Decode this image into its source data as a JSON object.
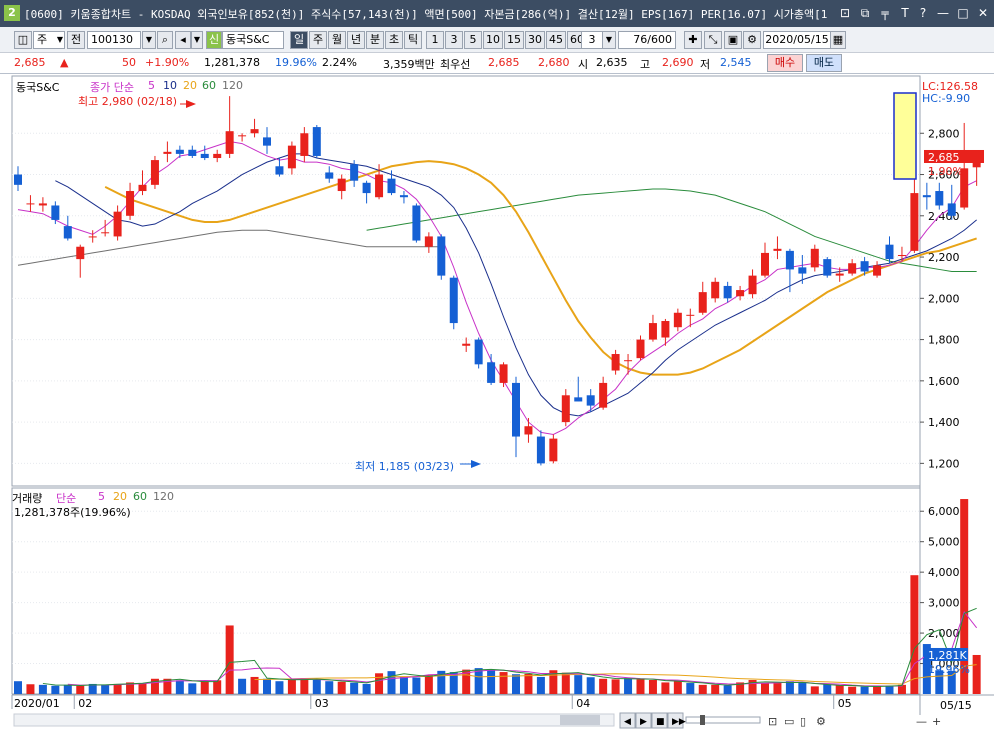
{
  "window": {
    "badge": "2",
    "title": "[0600] 키움종합차트 - KOSDAQ 외국인보유[852(천)] 주식수[57,143(천)] 액면[500] 자본금[286(억)] 결산[12월] EPS[167] PER[16.07] 시가총액[1",
    "controls": [
      "⊡",
      "⧉",
      "╤",
      "T",
      "?",
      "—",
      "□",
      "✕"
    ]
  },
  "toolbar": {
    "type_label": "주",
    "prev_label": "전",
    "code": "100130",
    "shin_label": "신",
    "stock_name": "동국S&C",
    "periods": [
      "일",
      "주",
      "월",
      "년",
      "분",
      "초",
      "틱"
    ],
    "intervals": [
      "1",
      "3",
      "5",
      "10",
      "15",
      "30",
      "45",
      "60"
    ],
    "interval_value": "3",
    "count": "76/600",
    "date": "2020/05/15"
  },
  "quote": {
    "price": "2,685",
    "arrow": "▲",
    "change": "50",
    "change_pct": "+1.90%",
    "volume": "1,281,378",
    "vol_pct": "19.96%",
    "turnover": "2.24%",
    "amount": "3,359백만",
    "best_label": "최우선",
    "ask": "2,685",
    "bid": "2,680",
    "open_label": "시",
    "open": "2,635",
    "high_label": "고",
    "high": "2,690",
    "low_label": "저",
    "low": "2,545",
    "buy_label": "매수",
    "sell_label": "매도"
  },
  "price_panel": {
    "stock_label": "동국S&C",
    "ma_label": "종가 단순",
    "ma_periods": [
      "5",
      "10",
      "20",
      "60",
      "120"
    ],
    "high_annotation": "최고 2,980 (02/18)",
    "low_annotation": "최저 1,185 (03/23)",
    "lc": "LC:126.58",
    "hc": "HC:-9.90",
    "last_price": "2,685",
    "last_pct": "1.90%",
    "ticks": [
      "2,800",
      "2,600",
      "2,400",
      "2,200",
      "2,000",
      "1,800",
      "1,600",
      "1,400",
      "1,200"
    ]
  },
  "volume_panel": {
    "label": "거래량",
    "ma_label": "단순",
    "ma_periods": [
      "5",
      "20",
      "60",
      "120"
    ],
    "current": "1,281,378주(19.96%)",
    "last_value": "1,281K",
    "last_pct": "19.96%",
    "ticks": [
      "6,000K",
      "5,000K",
      "4,000K",
      "3,000K",
      "2,000K",
      "1,000K"
    ]
  },
  "xaxis": {
    "labels": [
      "2020/01",
      "02",
      "03",
      "04",
      "05"
    ],
    "right_label": "05/15"
  },
  "colors": {
    "up": "#e8221c",
    "down": "#1560d4",
    "ma5": "#c832c8",
    "ma10": "#1a2f8c",
    "ma20": "#e8a418",
    "ma60": "#2a8c3c",
    "ma120": "#707070"
  },
  "chart_data": {
    "type": "candlestick",
    "price": {
      "ylim": [
        1100,
        3000
      ],
      "candles": [
        {
          "o": 2600,
          "h": 2640,
          "l": 2520,
          "c": 2550
        },
        {
          "o": 2460,
          "h": 2500,
          "l": 2420,
          "c": 2460
        },
        {
          "o": 2450,
          "h": 2490,
          "l": 2420,
          "c": 2460
        },
        {
          "o": 2450,
          "h": 2470,
          "l": 2360,
          "c": 2380
        },
        {
          "o": 2350,
          "h": 2400,
          "l": 2280,
          "c": 2290
        },
        {
          "o": 2190,
          "h": 2260,
          "l": 2100,
          "c": 2250
        },
        {
          "o": 2300,
          "h": 2330,
          "l": 2270,
          "c": 2300
        },
        {
          "o": 2320,
          "h": 2380,
          "l": 2300,
          "c": 2320
        },
        {
          "o": 2300,
          "h": 2450,
          "l": 2280,
          "c": 2420
        },
        {
          "o": 2400,
          "h": 2560,
          "l": 2380,
          "c": 2520
        },
        {
          "o": 2520,
          "h": 2620,
          "l": 2500,
          "c": 2550
        },
        {
          "o": 2550,
          "h": 2690,
          "l": 2530,
          "c": 2670
        },
        {
          "o": 2700,
          "h": 2760,
          "l": 2660,
          "c": 2710
        },
        {
          "o": 2720,
          "h": 2740,
          "l": 2680,
          "c": 2700
        },
        {
          "o": 2720,
          "h": 2740,
          "l": 2680,
          "c": 2690
        },
        {
          "o": 2700,
          "h": 2740,
          "l": 2670,
          "c": 2680
        },
        {
          "o": 2680,
          "h": 2720,
          "l": 2660,
          "c": 2700
        },
        {
          "o": 2700,
          "h": 2980,
          "l": 2680,
          "c": 2810
        },
        {
          "o": 2790,
          "h": 2800,
          "l": 2760,
          "c": 2790
        },
        {
          "o": 2800,
          "h": 2870,
          "l": 2780,
          "c": 2820
        },
        {
          "o": 2780,
          "h": 2830,
          "l": 2700,
          "c": 2740
        },
        {
          "o": 2640,
          "h": 2680,
          "l": 2590,
          "c": 2600
        },
        {
          "o": 2630,
          "h": 2760,
          "l": 2600,
          "c": 2740
        },
        {
          "o": 2690,
          "h": 2830,
          "l": 2660,
          "c": 2800
        },
        {
          "o": 2830,
          "h": 2840,
          "l": 2680,
          "c": 2690
        },
        {
          "o": 2610,
          "h": 2640,
          "l": 2560,
          "c": 2580
        },
        {
          "o": 2520,
          "h": 2600,
          "l": 2480,
          "c": 2580
        },
        {
          "o": 2650,
          "h": 2670,
          "l": 2540,
          "c": 2570
        },
        {
          "o": 2560,
          "h": 2570,
          "l": 2460,
          "c": 2510
        },
        {
          "o": 2490,
          "h": 2650,
          "l": 2480,
          "c": 2600
        },
        {
          "o": 2580,
          "h": 2620,
          "l": 2500,
          "c": 2510
        },
        {
          "o": 2500,
          "h": 2520,
          "l": 2460,
          "c": 2490
        },
        {
          "o": 2450,
          "h": 2460,
          "l": 2270,
          "c": 2280
        },
        {
          "o": 2250,
          "h": 2320,
          "l": 2220,
          "c": 2300
        },
        {
          "o": 2300,
          "h": 2310,
          "l": 2090,
          "c": 2110
        },
        {
          "o": 2100,
          "h": 2110,
          "l": 1850,
          "c": 1880
        },
        {
          "o": 1770,
          "h": 1810,
          "l": 1740,
          "c": 1780
        },
        {
          "o": 1800,
          "h": 1810,
          "l": 1660,
          "c": 1680
        },
        {
          "o": 1690,
          "h": 1730,
          "l": 1580,
          "c": 1590
        },
        {
          "o": 1590,
          "h": 1690,
          "l": 1570,
          "c": 1680
        },
        {
          "o": 1590,
          "h": 1620,
          "l": 1230,
          "c": 1330
        },
        {
          "o": 1340,
          "h": 1420,
          "l": 1300,
          "c": 1380
        },
        {
          "o": 1330,
          "h": 1360,
          "l": 1190,
          "c": 1200
        },
        {
          "o": 1210,
          "h": 1340,
          "l": 1200,
          "c": 1320
        },
        {
          "o": 1400,
          "h": 1560,
          "l": 1380,
          "c": 1530
        },
        {
          "o": 1520,
          "h": 1620,
          "l": 1500,
          "c": 1500
        },
        {
          "o": 1530,
          "h": 1560,
          "l": 1450,
          "c": 1480
        },
        {
          "o": 1470,
          "h": 1620,
          "l": 1460,
          "c": 1590
        },
        {
          "o": 1650,
          "h": 1750,
          "l": 1630,
          "c": 1730
        },
        {
          "o": 1700,
          "h": 1730,
          "l": 1630,
          "c": 1700
        },
        {
          "o": 1710,
          "h": 1820,
          "l": 1700,
          "c": 1800
        },
        {
          "o": 1800,
          "h": 1920,
          "l": 1790,
          "c": 1880
        },
        {
          "o": 1810,
          "h": 1900,
          "l": 1770,
          "c": 1890
        },
        {
          "o": 1860,
          "h": 1950,
          "l": 1840,
          "c": 1930
        },
        {
          "o": 1920,
          "h": 1950,
          "l": 1860,
          "c": 1920
        },
        {
          "o": 1930,
          "h": 2080,
          "l": 1920,
          "c": 2030
        },
        {
          "o": 2000,
          "h": 2100,
          "l": 1980,
          "c": 2080
        },
        {
          "o": 2060,
          "h": 2080,
          "l": 1980,
          "c": 2000
        },
        {
          "o": 2010,
          "h": 2060,
          "l": 1990,
          "c": 2040
        },
        {
          "o": 2020,
          "h": 2140,
          "l": 2000,
          "c": 2110
        },
        {
          "o": 2110,
          "h": 2270,
          "l": 2100,
          "c": 2220
        },
        {
          "o": 2230,
          "h": 2300,
          "l": 2190,
          "c": 2240
        },
        {
          "o": 2230,
          "h": 2240,
          "l": 2030,
          "c": 2140
        },
        {
          "o": 2150,
          "h": 2210,
          "l": 2070,
          "c": 2120
        },
        {
          "o": 2150,
          "h": 2260,
          "l": 2130,
          "c": 2240
        },
        {
          "o": 2190,
          "h": 2200,
          "l": 2100,
          "c": 2110
        },
        {
          "o": 2110,
          "h": 2150,
          "l": 2080,
          "c": 2120
        },
        {
          "o": 2120,
          "h": 2190,
          "l": 2110,
          "c": 2170
        },
        {
          "o": 2180,
          "h": 2200,
          "l": 2110,
          "c": 2130
        },
        {
          "o": 2110,
          "h": 2180,
          "l": 2100,
          "c": 2160
        },
        {
          "o": 2260,
          "h": 2300,
          "l": 2170,
          "c": 2190
        },
        {
          "o": 2210,
          "h": 2250,
          "l": 2180,
          "c": 2210
        },
        {
          "o": 2230,
          "h": 2580,
          "l": 2220,
          "c": 2510
        },
        {
          "o": 2500,
          "h": 2560,
          "l": 2430,
          "c": 2490
        },
        {
          "o": 2520,
          "h": 2560,
          "l": 2430,
          "c": 2450
        },
        {
          "o": 2460,
          "h": 2550,
          "l": 2380,
          "c": 2400
        },
        {
          "o": 2440,
          "h": 2850,
          "l": 2430,
          "c": 2630
        },
        {
          "o": 2635,
          "h": 2690,
          "l": 2545,
          "c": 2685
        }
      ],
      "ma5": [
        2430,
        2420,
        2410,
        2380,
        2350,
        2330,
        2310,
        2350,
        2400,
        2470,
        2540,
        2600,
        2640,
        2690,
        2700,
        2720,
        2740,
        2760,
        2750,
        2720,
        2690,
        2670,
        2680,
        2660,
        2660,
        2650,
        2630,
        2620,
        2600,
        2570,
        2560,
        2530,
        2480,
        2400,
        2300,
        2150,
        1980,
        1830,
        1700,
        1600,
        1500,
        1400,
        1350,
        1340,
        1370,
        1420,
        1460,
        1510,
        1560,
        1640,
        1700,
        1740,
        1780,
        1830,
        1870,
        1900,
        1950,
        1980,
        2020,
        2060,
        2090,
        2140,
        2150,
        2160,
        2170,
        2150,
        2140,
        2140,
        2150,
        2150,
        2160,
        2180,
        2250,
        2330,
        2400,
        2440,
        2540,
        2570
      ],
      "ma10": [
        2570,
        2540,
        2500,
        2460,
        2420,
        2380,
        2370,
        2350,
        2360,
        2390,
        2420,
        2460,
        2490,
        2520,
        2560,
        2600,
        2630,
        2660,
        2680,
        2700,
        2700,
        2680,
        2670,
        2660,
        2650,
        2640,
        2620,
        2600,
        2580,
        2560,
        2540,
        2500,
        2440,
        2340,
        2220,
        2070,
        1910,
        1760,
        1630,
        1530,
        1470,
        1440,
        1430,
        1450,
        1480,
        1510,
        1540,
        1590,
        1640,
        1700,
        1750,
        1790,
        1830,
        1870,
        1900,
        1930,
        1960,
        1990,
        2030,
        2060,
        2090,
        2110,
        2120,
        2130,
        2140,
        2150,
        2160,
        2170,
        2190,
        2210,
        2230,
        2260,
        2290,
        2330,
        2380
      ],
      "ma20": [
        2540,
        2510,
        2480,
        2460,
        2440,
        2420,
        2400,
        2380,
        2370,
        2370,
        2380,
        2400,
        2420,
        2440,
        2460,
        2480,
        2500,
        2520,
        2540,
        2560,
        2580,
        2600,
        2620,
        2640,
        2650,
        2660,
        2665,
        2660,
        2650,
        2630,
        2600,
        2560,
        2500,
        2420,
        2320,
        2210,
        2100,
        1990,
        1890,
        1810,
        1740,
        1690,
        1660,
        1640,
        1630,
        1630,
        1630,
        1640,
        1660,
        1690,
        1720,
        1750,
        1790,
        1830,
        1870,
        1910,
        1950,
        1990,
        2030,
        2060,
        2090,
        2120,
        2140,
        2160,
        2180,
        2200,
        2220,
        2230,
        2250,
        2270,
        2290
      ],
      "ma60": [
        2330,
        2340,
        2350,
        2360,
        2370,
        2380,
        2390,
        2400,
        2410,
        2420,
        2430,
        2440,
        2450,
        2460,
        2470,
        2480,
        2490,
        2500,
        2505,
        2510,
        2515,
        2520,
        2525,
        2530,
        2530,
        2525,
        2520,
        2510,
        2500,
        2480,
        2460,
        2440,
        2420,
        2390,
        2360,
        2330,
        2300,
        2280,
        2260,
        2240,
        2220,
        2200,
        2180,
        2170,
        2160,
        2150,
        2140,
        2130,
        2130,
        2130
      ],
      "ma120": [
        2160,
        2170,
        2180,
        2190,
        2200,
        2210,
        2220,
        2230,
        2240,
        2250,
        2260,
        2270,
        2280,
        2290,
        2300,
        2310,
        2320,
        2325,
        2330,
        2330,
        2330,
        2320,
        2310,
        2300,
        2290,
        2280,
        2270,
        2260,
        2250,
        2250,
        2250,
        2250,
        2250,
        2250,
        2250
      ]
    },
    "volume": {
      "unit": "K",
      "ylim": [
        0,
        6500
      ],
      "values": [
        420,
        320,
        300,
        270,
        300,
        270,
        330,
        300,
        330,
        380,
        350,
        500,
        500,
        450,
        350,
        420,
        450,
        2250,
        500,
        560,
        500,
        420,
        480,
        520,
        460,
        420,
        400,
        370,
        330,
        680,
        750,
        560,
        540,
        620,
        760,
        720,
        800,
        850,
        780,
        720,
        650,
        660,
        560,
        780,
        700,
        620,
        550,
        500,
        480,
        520,
        480,
        460,
        380,
        430,
        360,
        300,
        300,
        280,
        380,
        460,
        350,
        360,
        420,
        360,
        250,
        320,
        280,
        240,
        240,
        260,
        280,
        300,
        3900,
        1640,
        780,
        760,
        6400,
        1281
      ],
      "up": [
        0,
        1,
        0,
        0,
        0,
        1,
        0,
        0,
        1,
        1,
        1,
        1,
        1,
        0,
        0,
        1,
        1,
        1,
        0,
        1,
        0,
        0,
        1,
        1,
        0,
        0,
        1,
        0,
        0,
        1,
        0,
        0,
        0,
        1,
        0,
        0,
        1,
        0,
        0,
        1,
        0,
        1,
        0,
        1,
        1,
        0,
        0,
        1,
        1,
        0,
        1,
        1,
        1,
        1,
        0,
        1,
        1,
        0,
        1,
        1,
        1,
        1,
        0,
        0,
        1,
        0,
        1,
        1,
        0,
        1,
        0,
        1,
        1,
        0,
        0,
        0,
        1,
        1
      ]
    }
  }
}
